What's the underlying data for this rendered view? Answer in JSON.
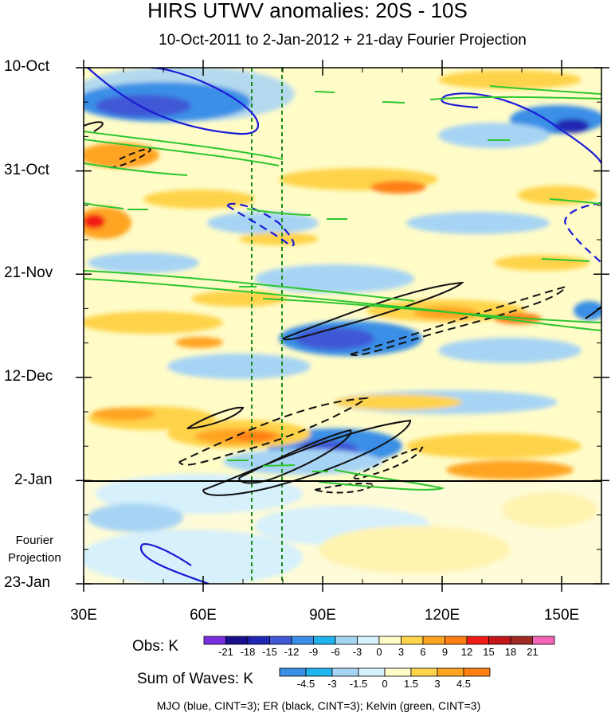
{
  "chart_data": {
    "type": "heatmap",
    "title": "HIRS UTWV anomalies: 20S - 10S",
    "subtitle": "10-Oct-2011 to 2-Jan-2012 + 21-day Fourier Projection",
    "x_ticks": [
      "30E",
      "60E",
      "90E",
      "120E",
      "150E"
    ],
    "x_tick_values": [
      30,
      60,
      90,
      120,
      150
    ],
    "xlim": [
      30,
      160
    ],
    "y_ticks": [
      "10-Oct",
      "31-Oct",
      "21-Nov",
      "12-Dec",
      "2-Jan",
      "23-Jan"
    ],
    "y_tick_days": [
      0,
      21,
      42,
      63,
      84,
      105
    ],
    "ylim_days": [
      0,
      105
    ],
    "projection_label": [
      "Fourier",
      "Projection"
    ],
    "projection_start_day": 84,
    "vertical_reference_lines_lon": [
      72.5,
      80
    ],
    "colorbars": [
      {
        "name": "Obs: K",
        "levels": [
          "-21",
          "-18",
          "-15",
          "-12",
          "-9",
          "-6",
          "-3",
          "0",
          "3",
          "6",
          "9",
          "12",
          "15",
          "18",
          "21"
        ],
        "colors": [
          "#7b2de0",
          "#1a0e8a",
          "#2226b4",
          "#3f59d6",
          "#3a8fe6",
          "#20b4ee",
          "#a7d4f4",
          "#d6f0fc",
          "#fffcc8",
          "#ffd34a",
          "#ffa422",
          "#ff7f12",
          "#f21b16",
          "#c2161a",
          "#9e2c22",
          "#f564b8"
        ]
      },
      {
        "name": "Sum of Waves: K",
        "levels": [
          "-4.5",
          "-3",
          "-1.5",
          "0",
          "1.5",
          "3",
          "4.5"
        ],
        "colors": [
          "#3a8fe6",
          "#20b4ee",
          "#a7d4f4",
          "#d6f0fc",
          "#fffcc8",
          "#ffd34a",
          "#ffa422",
          "#ff7f12"
        ]
      }
    ],
    "legend_note": "MJO (blue, CINT=3); ER (black, CINT=3); Kelvin (green, CINT=3)"
  }
}
